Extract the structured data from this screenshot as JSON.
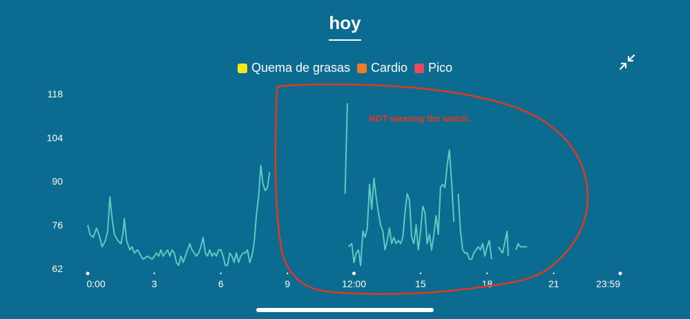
{
  "header": {
    "title": "hoy"
  },
  "legend": [
    {
      "label": "Quema de grasas",
      "color": "#f5e51b"
    },
    {
      "label": "Cardio",
      "color": "#f47a28"
    },
    {
      "label": "Pico",
      "color": "#ea4a63"
    }
  ],
  "controls": {
    "collapse_icon": "collapse-arrows-icon"
  },
  "annotation": {
    "text": "NOT wearing the watch.",
    "color": "#e03a1e"
  },
  "colors": {
    "background": "#0b6b91",
    "line": "#5ccbc0"
  },
  "chart_data": {
    "type": "line",
    "title": "",
    "xlabel": "",
    "ylabel": "",
    "ylim": [
      62,
      118
    ],
    "xlim": [
      0,
      24
    ],
    "yticks": [
      "118",
      "104",
      "90",
      "76",
      "62"
    ],
    "xticks": [
      {
        "v": 0,
        "label": "0:00",
        "dot": true
      },
      {
        "v": 3,
        "label": "3",
        "dot": false
      },
      {
        "v": 6,
        "label": "6",
        "dot": false
      },
      {
        "v": 9,
        "label": "9",
        "dot": false
      },
      {
        "v": 12,
        "label": "12:00",
        "dot": true
      },
      {
        "v": 15,
        "label": "15",
        "dot": false
      },
      {
        "v": 18,
        "label": "18",
        "dot": false
      },
      {
        "v": 21,
        "label": "21",
        "dot": false
      },
      {
        "v": 24,
        "label": "23:59",
        "dot": true
      }
    ],
    "grid": false,
    "series": [
      {
        "segments": [
          [
            [
              0,
              76
            ],
            [
              0.1,
              73
            ],
            [
              0.25,
              72
            ],
            [
              0.4,
              75
            ],
            [
              0.5,
              73
            ],
            [
              0.65,
              69
            ],
            [
              0.8,
              71
            ],
            [
              0.9,
              74
            ],
            [
              1.0,
              85
            ],
            [
              1.1,
              78
            ],
            [
              1.2,
              73
            ],
            [
              1.35,
              71
            ],
            [
              1.5,
              70
            ],
            [
              1.6,
              74
            ],
            [
              1.65,
              78
            ],
            [
              1.75,
              71
            ],
            [
              1.9,
              68
            ],
            [
              2.0,
              69
            ],
            [
              2.1,
              67
            ],
            [
              2.25,
              68
            ],
            [
              2.4,
              66
            ],
            [
              2.5,
              65
            ],
            [
              2.7,
              66
            ],
            [
              2.9,
              65
            ],
            [
              3.0,
              66
            ],
            [
              3.1,
              67
            ],
            [
              3.2,
              66
            ],
            [
              3.3,
              68
            ],
            [
              3.4,
              66
            ],
            [
              3.5,
              67
            ],
            [
              3.6,
              68
            ],
            [
              3.7,
              66
            ],
            [
              3.8,
              68
            ],
            [
              3.9,
              67
            ],
            [
              4.0,
              64
            ],
            [
              4.1,
              63
            ],
            [
              4.2,
              66
            ],
            [
              4.3,
              64
            ],
            [
              4.4,
              66
            ],
            [
              4.5,
              68
            ],
            [
              4.6,
              70
            ],
            [
              4.7,
              68
            ],
            [
              4.8,
              67
            ],
            [
              4.9,
              66
            ],
            [
              5.0,
              67
            ],
            [
              5.1,
              69
            ],
            [
              5.2,
              72
            ],
            [
              5.3,
              67
            ],
            [
              5.4,
              66
            ],
            [
              5.5,
              68
            ],
            [
              5.6,
              66
            ],
            [
              5.7,
              67
            ],
            [
              5.8,
              66
            ],
            [
              5.9,
              68
            ],
            [
              6.0,
              68
            ],
            [
              6.1,
              66
            ],
            [
              6.2,
              63
            ],
            [
              6.3,
              63
            ],
            [
              6.4,
              67
            ],
            [
              6.5,
              66
            ],
            [
              6.6,
              64
            ],
            [
              6.7,
              67
            ],
            [
              6.8,
              64
            ],
            [
              6.9,
              66
            ],
            [
              7.0,
              67
            ],
            [
              7.1,
              67
            ],
            [
              7.2,
              68
            ],
            [
              7.3,
              64
            ],
            [
              7.4,
              66
            ],
            [
              7.5,
              70
            ],
            [
              7.6,
              79
            ],
            [
              7.7,
              85
            ],
            [
              7.8,
              95
            ],
            [
              7.9,
              89
            ],
            [
              8.0,
              87
            ],
            [
              8.1,
              88
            ],
            [
              8.2,
              93
            ]
          ],
          [
            [
              11.6,
              86
            ],
            [
              11.7,
              115
            ]
          ],
          [
            [
              11.75,
              69
            ],
            [
              11.9,
              70
            ],
            [
              12.0,
              64
            ],
            [
              12.1,
              67
            ],
            [
              12.2,
              68
            ],
            [
              12.3,
              63
            ],
            [
              12.4,
              74
            ],
            [
              12.5,
              72
            ],
            [
              12.6,
              75
            ],
            [
              12.7,
              89
            ],
            [
              12.8,
              81
            ],
            [
              12.9,
              91
            ],
            [
              13.0,
              85
            ],
            [
              13.1,
              80
            ],
            [
              13.2,
              76
            ],
            [
              13.3,
              74
            ],
            [
              13.4,
              68
            ],
            [
              13.5,
              71
            ],
            [
              13.6,
              75
            ],
            [
              13.7,
              70
            ],
            [
              13.8,
              72
            ],
            [
              13.9,
              70
            ],
            [
              14.0,
              71
            ],
            [
              14.1,
              70
            ],
            [
              14.2,
              72
            ],
            [
              14.3,
              80
            ],
            [
              14.4,
              86
            ],
            [
              14.5,
              84
            ],
            [
              14.6,
              72
            ],
            [
              14.7,
              70
            ],
            [
              14.8,
              76
            ],
            [
              14.9,
              68
            ],
            [
              15.0,
              74
            ],
            [
              15.1,
              82
            ],
            [
              15.2,
              80
            ],
            [
              15.3,
              70
            ],
            [
              15.4,
              73
            ],
            [
              15.5,
              68
            ],
            [
              15.6,
              73
            ],
            [
              15.7,
              79
            ],
            [
              15.8,
              73
            ],
            [
              15.9,
              88
            ],
            [
              16.0,
              89
            ],
            [
              16.1,
              88
            ],
            [
              16.2,
              95
            ],
            [
              16.3,
              100
            ],
            [
              16.4,
              90
            ],
            [
              16.5,
              77
            ]
          ],
          [
            [
              16.7,
              86
            ],
            [
              16.8,
              74
            ],
            [
              16.9,
              68
            ],
            [
              17.0,
              67
            ],
            [
              17.1,
              67
            ],
            [
              17.2,
              65
            ],
            [
              17.3,
              65
            ],
            [
              17.4,
              67
            ],
            [
              17.5,
              68
            ],
            [
              17.6,
              69
            ],
            [
              17.7,
              68
            ],
            [
              17.8,
              70
            ],
            [
              17.9,
              66
            ],
            [
              18.0,
              69
            ],
            [
              18.1,
              71
            ],
            [
              18.2,
              65
            ]
          ],
          [
            [
              18.5,
              69
            ],
            [
              18.6,
              68
            ],
            [
              18.7,
              67
            ],
            [
              18.9,
              74
            ],
            [
              18.95,
              66
            ]
          ],
          [
            [
              19.3,
              68
            ],
            [
              19.4,
              70
            ],
            [
              19.5,
              69
            ],
            [
              19.6,
              69
            ],
            [
              19.8,
              69
            ]
          ]
        ]
      }
    ]
  }
}
